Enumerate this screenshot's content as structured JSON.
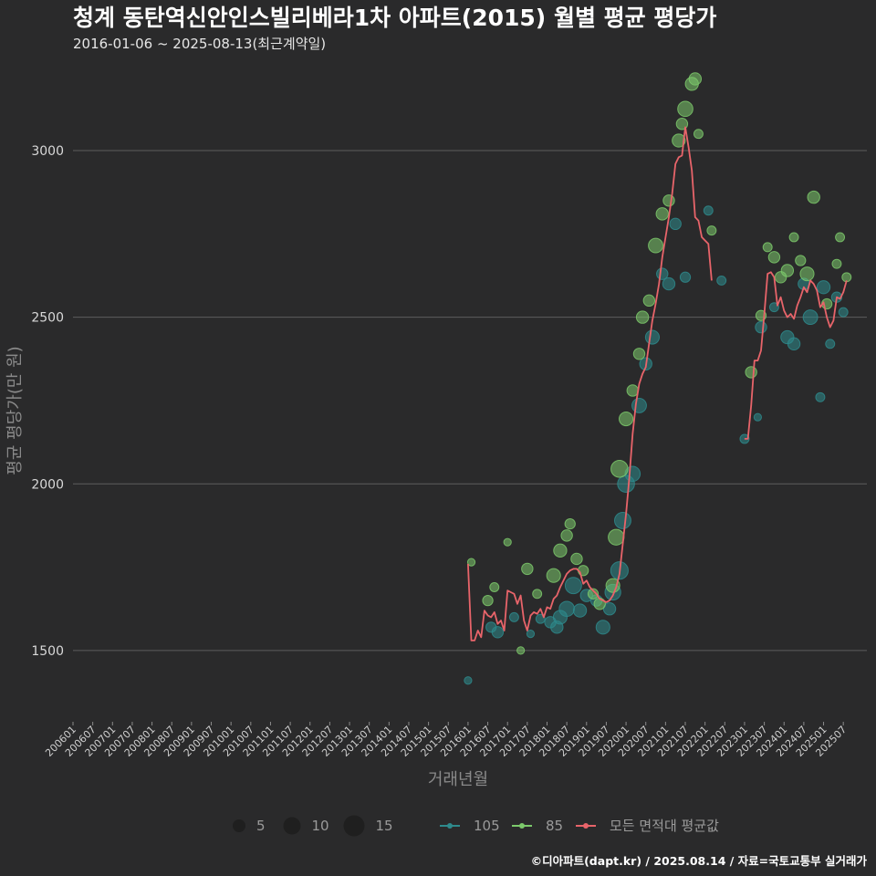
{
  "chart_data": {
    "type": "scatter",
    "title": "청계 동탄역신안인스빌리베라1차 아파트(2015) 월별 평균 평당가",
    "subtitle": "2016-01-06 ~ 2025-08-13(최근계약일)",
    "xlabel": "거래년월",
    "ylabel": "평균 평당가(만 원)",
    "footer": "©디아파트(dapt.kr) / 2025.08.14 / 자료=국토교통부 실거래가",
    "ylim": [
      1330,
      3260
    ],
    "xlim": [
      "2006-01",
      "2025-10"
    ],
    "yticks": [
      1500,
      2000,
      2500,
      3000
    ],
    "xticks": [
      "200601",
      "200607",
      "200701",
      "200707",
      "200801",
      "200807",
      "200901",
      "200907",
      "201001",
      "201007",
      "201101",
      "201107",
      "201201",
      "201207",
      "201301",
      "201307",
      "201401",
      "201407",
      "201501",
      "201507",
      "201601",
      "201607",
      "201701",
      "201707",
      "201801",
      "201807",
      "201901",
      "201907",
      "202001",
      "202007",
      "202101",
      "202107",
      "202201",
      "202207",
      "202301",
      "202307",
      "202401",
      "202407",
      "202501",
      "202507"
    ],
    "grid": true,
    "legend_position": "bottom",
    "colors": {
      "105": "#2e8a8c",
      "85": "#7cc96b",
      "avg": "#e8646a",
      "size_legend": "#1e1e1e"
    },
    "size_legend": [
      {
        "label": "5",
        "value": 5
      },
      {
        "label": "10",
        "value": 10
      },
      {
        "label": "15",
        "value": 15
      }
    ],
    "series": [
      {
        "name": "105",
        "type": "scatter",
        "points": [
          {
            "x": "2016-01",
            "y": 1410,
            "n": 1
          },
          {
            "x": "2016-08",
            "y": 1570,
            "n": 3
          },
          {
            "x": "2016-10",
            "y": 1555,
            "n": 4
          },
          {
            "x": "2017-03",
            "y": 1600,
            "n": 2
          },
          {
            "x": "2017-08",
            "y": 1550,
            "n": 1
          },
          {
            "x": "2017-11",
            "y": 1595,
            "n": 2
          },
          {
            "x": "2018-02",
            "y": 1585,
            "n": 4
          },
          {
            "x": "2018-04",
            "y": 1570,
            "n": 5
          },
          {
            "x": "2018-05",
            "y": 1600,
            "n": 7
          },
          {
            "x": "2018-07",
            "y": 1625,
            "n": 9
          },
          {
            "x": "2018-09",
            "y": 1695,
            "n": 11
          },
          {
            "x": "2018-11",
            "y": 1620,
            "n": 6
          },
          {
            "x": "2019-01",
            "y": 1665,
            "n": 5
          },
          {
            "x": "2019-04",
            "y": 1650,
            "n": 4
          },
          {
            "x": "2019-06",
            "y": 1570,
            "n": 7
          },
          {
            "x": "2019-08",
            "y": 1625,
            "n": 5
          },
          {
            "x": "2019-09",
            "y": 1675,
            "n": 10
          },
          {
            "x": "2019-11",
            "y": 1740,
            "n": 13
          },
          {
            "x": "2019-12",
            "y": 1890,
            "n": 11
          },
          {
            "x": "2020-01",
            "y": 2000,
            "n": 12
          },
          {
            "x": "2020-03",
            "y": 2030,
            "n": 9
          },
          {
            "x": "2020-05",
            "y": 2235,
            "n": 8
          },
          {
            "x": "2020-07",
            "y": 2360,
            "n": 5
          },
          {
            "x": "2020-09",
            "y": 2440,
            "n": 7
          },
          {
            "x": "2020-12",
            "y": 2630,
            "n": 4
          },
          {
            "x": "2021-02",
            "y": 2600,
            "n": 5
          },
          {
            "x": "2021-04",
            "y": 2780,
            "n": 4
          },
          {
            "x": "2021-07",
            "y": 2620,
            "n": 3
          },
          {
            "x": "2022-02",
            "y": 2820,
            "n": 2
          },
          {
            "x": "2022-06",
            "y": 2610,
            "n": 2
          },
          {
            "x": "2023-01",
            "y": 2135,
            "n": 2
          },
          {
            "x": "2023-05",
            "y": 2200,
            "n": 1
          },
          {
            "x": "2023-06",
            "y": 2470,
            "n": 4
          },
          {
            "x": "2023-10",
            "y": 2530,
            "n": 2
          },
          {
            "x": "2024-02",
            "y": 2440,
            "n": 6
          },
          {
            "x": "2024-04",
            "y": 2420,
            "n": 5
          },
          {
            "x": "2024-07",
            "y": 2600,
            "n": 4
          },
          {
            "x": "2024-09",
            "y": 2500,
            "n": 8
          },
          {
            "x": "2024-12",
            "y": 2260,
            "n": 2
          },
          {
            "x": "2025-01",
            "y": 2590,
            "n": 6
          },
          {
            "x": "2025-03",
            "y": 2420,
            "n": 2
          },
          {
            "x": "2025-05",
            "y": 2560,
            "n": 3
          },
          {
            "x": "2025-07",
            "y": 2515,
            "n": 2
          }
        ]
      },
      {
        "name": "85",
        "type": "scatter",
        "points": [
          {
            "x": "2016-02",
            "y": 1765,
            "n": 1
          },
          {
            "x": "2016-07",
            "y": 1650,
            "n": 3
          },
          {
            "x": "2016-09",
            "y": 1690,
            "n": 2
          },
          {
            "x": "2017-01",
            "y": 1825,
            "n": 1
          },
          {
            "x": "2017-05",
            "y": 1500,
            "n": 1
          },
          {
            "x": "2017-07",
            "y": 1745,
            "n": 4
          },
          {
            "x": "2017-10",
            "y": 1670,
            "n": 2
          },
          {
            "x": "2018-03",
            "y": 1725,
            "n": 7
          },
          {
            "x": "2018-05",
            "y": 1800,
            "n": 6
          },
          {
            "x": "2018-07",
            "y": 1845,
            "n": 4
          },
          {
            "x": "2018-08",
            "y": 1880,
            "n": 3
          },
          {
            "x": "2018-10",
            "y": 1775,
            "n": 4
          },
          {
            "x": "2018-12",
            "y": 1740,
            "n": 3
          },
          {
            "x": "2019-03",
            "y": 1670,
            "n": 3
          },
          {
            "x": "2019-05",
            "y": 1640,
            "n": 4
          },
          {
            "x": "2019-09",
            "y": 1695,
            "n": 7
          },
          {
            "x": "2019-10",
            "y": 1840,
            "n": 10
          },
          {
            "x": "2019-11",
            "y": 2045,
            "n": 12
          },
          {
            "x": "2020-01",
            "y": 2195,
            "n": 7
          },
          {
            "x": "2020-03",
            "y": 2280,
            "n": 4
          },
          {
            "x": "2020-05",
            "y": 2390,
            "n": 4
          },
          {
            "x": "2020-06",
            "y": 2500,
            "n": 5
          },
          {
            "x": "2020-08",
            "y": 2550,
            "n": 4
          },
          {
            "x": "2020-10",
            "y": 2715,
            "n": 8
          },
          {
            "x": "2020-12",
            "y": 2810,
            "n": 5
          },
          {
            "x": "2021-02",
            "y": 2850,
            "n": 4
          },
          {
            "x": "2021-05",
            "y": 3030,
            "n": 6
          },
          {
            "x": "2021-06",
            "y": 3080,
            "n": 4
          },
          {
            "x": "2021-07",
            "y": 3125,
            "n": 9
          },
          {
            "x": "2021-09",
            "y": 3200,
            "n": 6
          },
          {
            "x": "2021-10",
            "y": 3215,
            "n": 5
          },
          {
            "x": "2021-11",
            "y": 3050,
            "n": 2
          },
          {
            "x": "2022-03",
            "y": 2760,
            "n": 2
          },
          {
            "x": "2023-03",
            "y": 2335,
            "n": 4
          },
          {
            "x": "2023-06",
            "y": 2505,
            "n": 3
          },
          {
            "x": "2023-08",
            "y": 2710,
            "n": 2
          },
          {
            "x": "2023-10",
            "y": 2680,
            "n": 4
          },
          {
            "x": "2023-12",
            "y": 2620,
            "n": 4
          },
          {
            "x": "2024-02",
            "y": 2640,
            "n": 5
          },
          {
            "x": "2024-04",
            "y": 2740,
            "n": 2
          },
          {
            "x": "2024-06",
            "y": 2670,
            "n": 3
          },
          {
            "x": "2024-08",
            "y": 2630,
            "n": 7
          },
          {
            "x": "2024-10",
            "y": 2860,
            "n": 5
          },
          {
            "x": "2025-02",
            "y": 2540,
            "n": 3
          },
          {
            "x": "2025-05",
            "y": 2660,
            "n": 2
          },
          {
            "x": "2025-06",
            "y": 2740,
            "n": 2
          },
          {
            "x": "2025-08",
            "y": 2620,
            "n": 2
          }
        ]
      },
      {
        "name": "모든 면적대 평균값",
        "type": "line",
        "segments": [
          [
            {
              "x": "2016-01",
              "y": 1760
            },
            {
              "x": "2016-02",
              "y": 1530
            },
            {
              "x": "2016-03",
              "y": 1530
            },
            {
              "x": "2016-04",
              "y": 1560
            },
            {
              "x": "2016-05",
              "y": 1540
            },
            {
              "x": "2016-06",
              "y": 1620
            },
            {
              "x": "2016-07",
              "y": 1605
            },
            {
              "x": "2016-08",
              "y": 1600
            },
            {
              "x": "2016-09",
              "y": 1615
            },
            {
              "x": "2016-10",
              "y": 1580
            },
            {
              "x": "2016-11",
              "y": 1590
            },
            {
              "x": "2016-12",
              "y": 1560
            },
            {
              "x": "2017-01",
              "y": 1680
            },
            {
              "x": "2017-02",
              "y": 1675
            },
            {
              "x": "2017-03",
              "y": 1670
            },
            {
              "x": "2017-04",
              "y": 1640
            },
            {
              "x": "2017-05",
              "y": 1665
            },
            {
              "x": "2017-06",
              "y": 1590
            },
            {
              "x": "2017-07",
              "y": 1560
            },
            {
              "x": "2017-08",
              "y": 1605
            },
            {
              "x": "2017-09",
              "y": 1615
            },
            {
              "x": "2017-10",
              "y": 1610
            },
            {
              "x": "2017-11",
              "y": 1625
            },
            {
              "x": "2017-12",
              "y": 1600
            },
            {
              "x": "2018-01",
              "y": 1630
            },
            {
              "x": "2018-02",
              "y": 1625
            },
            {
              "x": "2018-03",
              "y": 1655
            },
            {
              "x": "2018-04",
              "y": 1665
            },
            {
              "x": "2018-05",
              "y": 1690
            },
            {
              "x": "2018-06",
              "y": 1710
            },
            {
              "x": "2018-07",
              "y": 1730
            },
            {
              "x": "2018-08",
              "y": 1740
            },
            {
              "x": "2018-09",
              "y": 1745
            },
            {
              "x": "2018-10",
              "y": 1745
            },
            {
              "x": "2018-11",
              "y": 1735
            },
            {
              "x": "2018-12",
              "y": 1700
            },
            {
              "x": "2019-01",
              "y": 1710
            },
            {
              "x": "2019-02",
              "y": 1690
            },
            {
              "x": "2019-03",
              "y": 1680
            },
            {
              "x": "2019-04",
              "y": 1670
            },
            {
              "x": "2019-05",
              "y": 1655
            },
            {
              "x": "2019-06",
              "y": 1650
            },
            {
              "x": "2019-07",
              "y": 1645
            },
            {
              "x": "2019-08",
              "y": 1650
            },
            {
              "x": "2019-09",
              "y": 1665
            },
            {
              "x": "2019-10",
              "y": 1690
            },
            {
              "x": "2019-11",
              "y": 1730
            },
            {
              "x": "2019-12",
              "y": 1820
            },
            {
              "x": "2020-01",
              "y": 1910
            },
            {
              "x": "2020-02",
              "y": 2020
            },
            {
              "x": "2020-03",
              "y": 2150
            },
            {
              "x": "2020-04",
              "y": 2240
            },
            {
              "x": "2020-05",
              "y": 2300
            },
            {
              "x": "2020-06",
              "y": 2330
            },
            {
              "x": "2020-07",
              "y": 2350
            },
            {
              "x": "2020-08",
              "y": 2420
            },
            {
              "x": "2020-09",
              "y": 2490
            },
            {
              "x": "2020-10",
              "y": 2540
            },
            {
              "x": "2020-11",
              "y": 2600
            },
            {
              "x": "2020-12",
              "y": 2680
            },
            {
              "x": "2021-01",
              "y": 2740
            },
            {
              "x": "2021-02",
              "y": 2800
            },
            {
              "x": "2021-03",
              "y": 2870
            },
            {
              "x": "2021-04",
              "y": 2960
            },
            {
              "x": "2021-05",
              "y": 2980
            },
            {
              "x": "2021-06",
              "y": 2985
            },
            {
              "x": "2021-07",
              "y": 3070
            },
            {
              "x": "2021-08",
              "y": 3010
            },
            {
              "x": "2021-09",
              "y": 2940
            },
            {
              "x": "2021-10",
              "y": 2800
            },
            {
              "x": "2021-11",
              "y": 2790
            },
            {
              "x": "2021-12",
              "y": 2740
            },
            {
              "x": "2022-01",
              "y": 2730
            },
            {
              "x": "2022-02",
              "y": 2720
            },
            {
              "x": "2022-03",
              "y": 2610
            }
          ],
          [
            {
              "x": "2023-01",
              "y": 2135
            },
            {
              "x": "2023-02",
              "y": 2135
            },
            {
              "x": "2023-03",
              "y": 2235
            },
            {
              "x": "2023-04",
              "y": 2370
            },
            {
              "x": "2023-05",
              "y": 2370
            },
            {
              "x": "2023-06",
              "y": 2400
            },
            {
              "x": "2023-07",
              "y": 2510
            },
            {
              "x": "2023-08",
              "y": 2630
            },
            {
              "x": "2023-09",
              "y": 2635
            },
            {
              "x": "2023-10",
              "y": 2620
            },
            {
              "x": "2023-11",
              "y": 2535
            },
            {
              "x": "2023-12",
              "y": 2560
            },
            {
              "x": "2024-01",
              "y": 2520
            },
            {
              "x": "2024-02",
              "y": 2500
            },
            {
              "x": "2024-03",
              "y": 2510
            },
            {
              "x": "2024-04",
              "y": 2495
            },
            {
              "x": "2024-05",
              "y": 2535
            },
            {
              "x": "2024-06",
              "y": 2560
            },
            {
              "x": "2024-07",
              "y": 2590
            },
            {
              "x": "2024-08",
              "y": 2575
            },
            {
              "x": "2024-09",
              "y": 2610
            },
            {
              "x": "2024-10",
              "y": 2600
            },
            {
              "x": "2024-11",
              "y": 2580
            },
            {
              "x": "2024-12",
              "y": 2530
            },
            {
              "x": "2025-01",
              "y": 2545
            },
            {
              "x": "2025-02",
              "y": 2500
            },
            {
              "x": "2025-03",
              "y": 2470
            },
            {
              "x": "2025-04",
              "y": 2490
            },
            {
              "x": "2025-05",
              "y": 2560
            },
            {
              "x": "2025-06",
              "y": 2555
            },
            {
              "x": "2025-07",
              "y": 2575
            },
            {
              "x": "2025-08",
              "y": 2610
            }
          ]
        ]
      }
    ]
  }
}
